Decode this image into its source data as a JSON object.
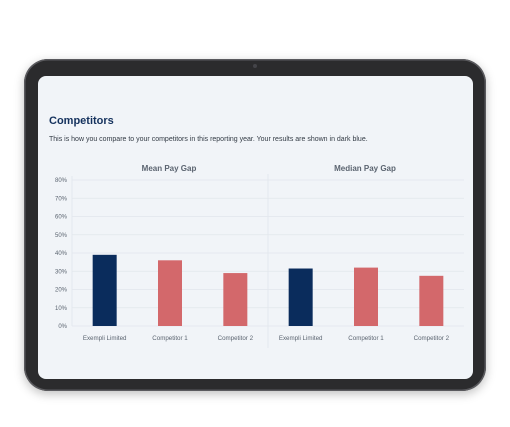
{
  "section": {
    "title": "Competitors",
    "description": "This is how you compare to your competitors in this reporting year. Your results are shown in dark blue."
  },
  "colors": {
    "highlight": "#0a2c5c",
    "competitor": "#d3686b",
    "screen_background": "#f1f4f8",
    "gridline": "#e1e6ec"
  },
  "chart_data": [
    {
      "type": "bar",
      "title": "Mean Pay Gap",
      "categories": [
        "Exempli Limited",
        "Competitor 1",
        "Competitor 2"
      ],
      "values": [
        39,
        36,
        29
      ],
      "highlight_category": "Exempli Limited",
      "ylim": [
        0,
        80
      ],
      "yticks": [
        "0%",
        "10%",
        "20%",
        "30%",
        "40%",
        "50%",
        "60%",
        "70%",
        "80%"
      ],
      "grid": true,
      "legend": "none"
    },
    {
      "type": "bar",
      "title": "Median Pay Gap",
      "categories": [
        "Exempli Limited",
        "Competitor 1",
        "Competitor 2"
      ],
      "values": [
        31.5,
        32,
        27.5
      ],
      "highlight_category": "Exempli Limited",
      "ylim": [
        0,
        80
      ],
      "grid": true,
      "legend": "none"
    }
  ]
}
